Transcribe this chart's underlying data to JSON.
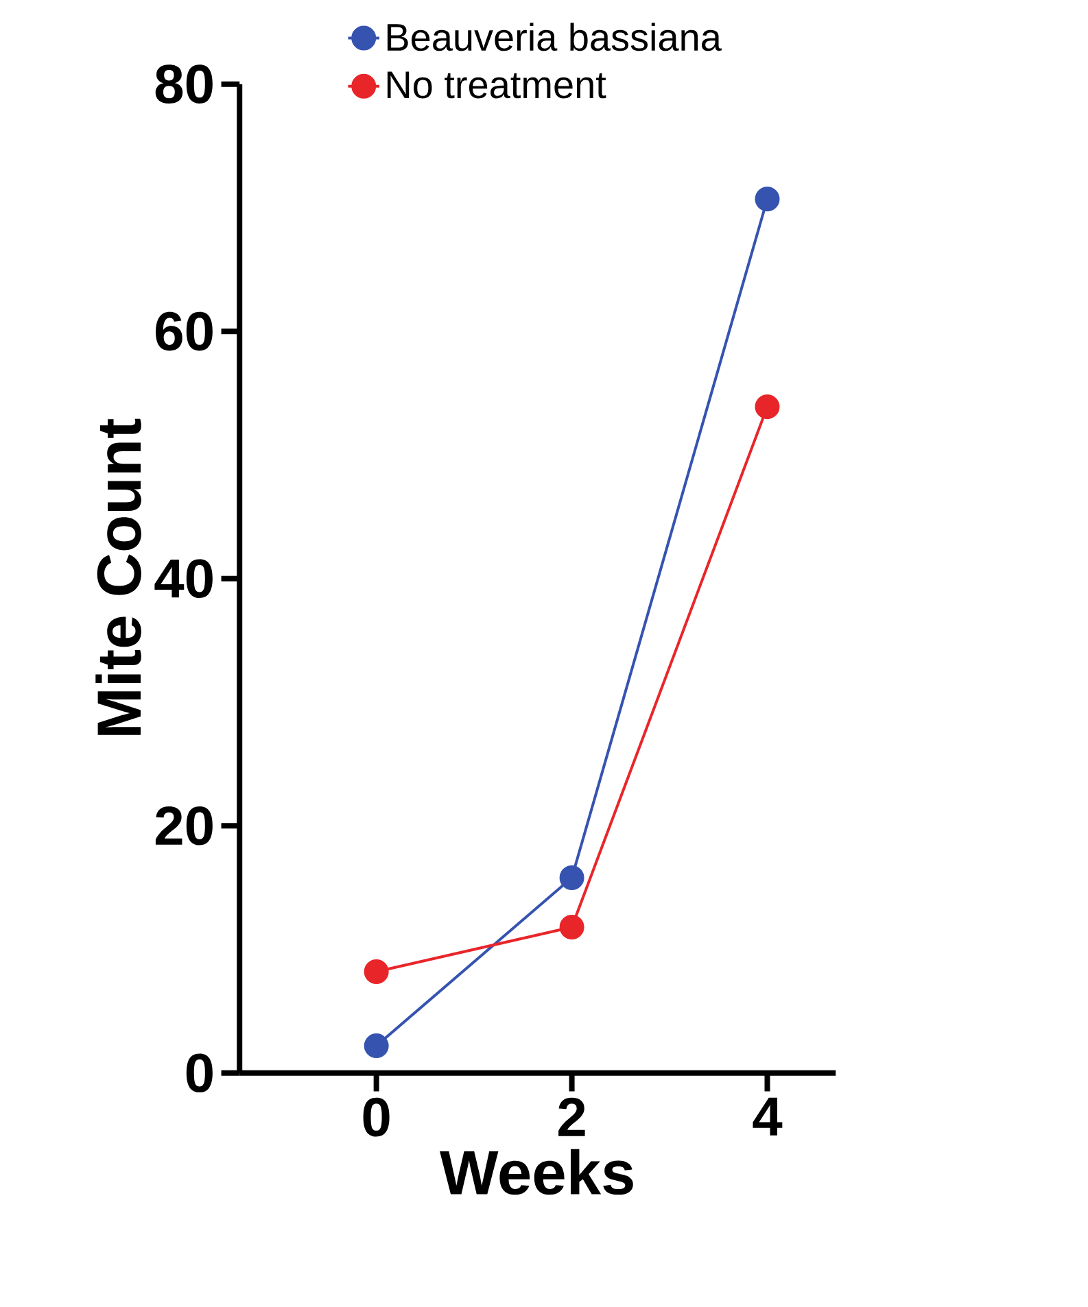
{
  "chart_data": {
    "type": "line",
    "xlabel": "Weeks",
    "ylabel": "Mite Count",
    "x": [
      0,
      2,
      4
    ],
    "xlim": [
      -1.4,
      4.7
    ],
    "xticks": [
      0,
      2,
      4
    ],
    "ylim": [
      0,
      80
    ],
    "yticks": [
      0,
      20,
      40,
      60,
      80
    ],
    "series": [
      {
        "name": "Beauveria bassiana",
        "color": "#3653b0",
        "values": [
          2.2,
          15.8,
          70.7
        ]
      },
      {
        "name": "No treatment",
        "color": "#e8262a",
        "values": [
          8.2,
          11.8,
          53.9
        ]
      }
    ],
    "marker": "circle",
    "line_style": "solid",
    "legend": "top",
    "grid": false
  }
}
